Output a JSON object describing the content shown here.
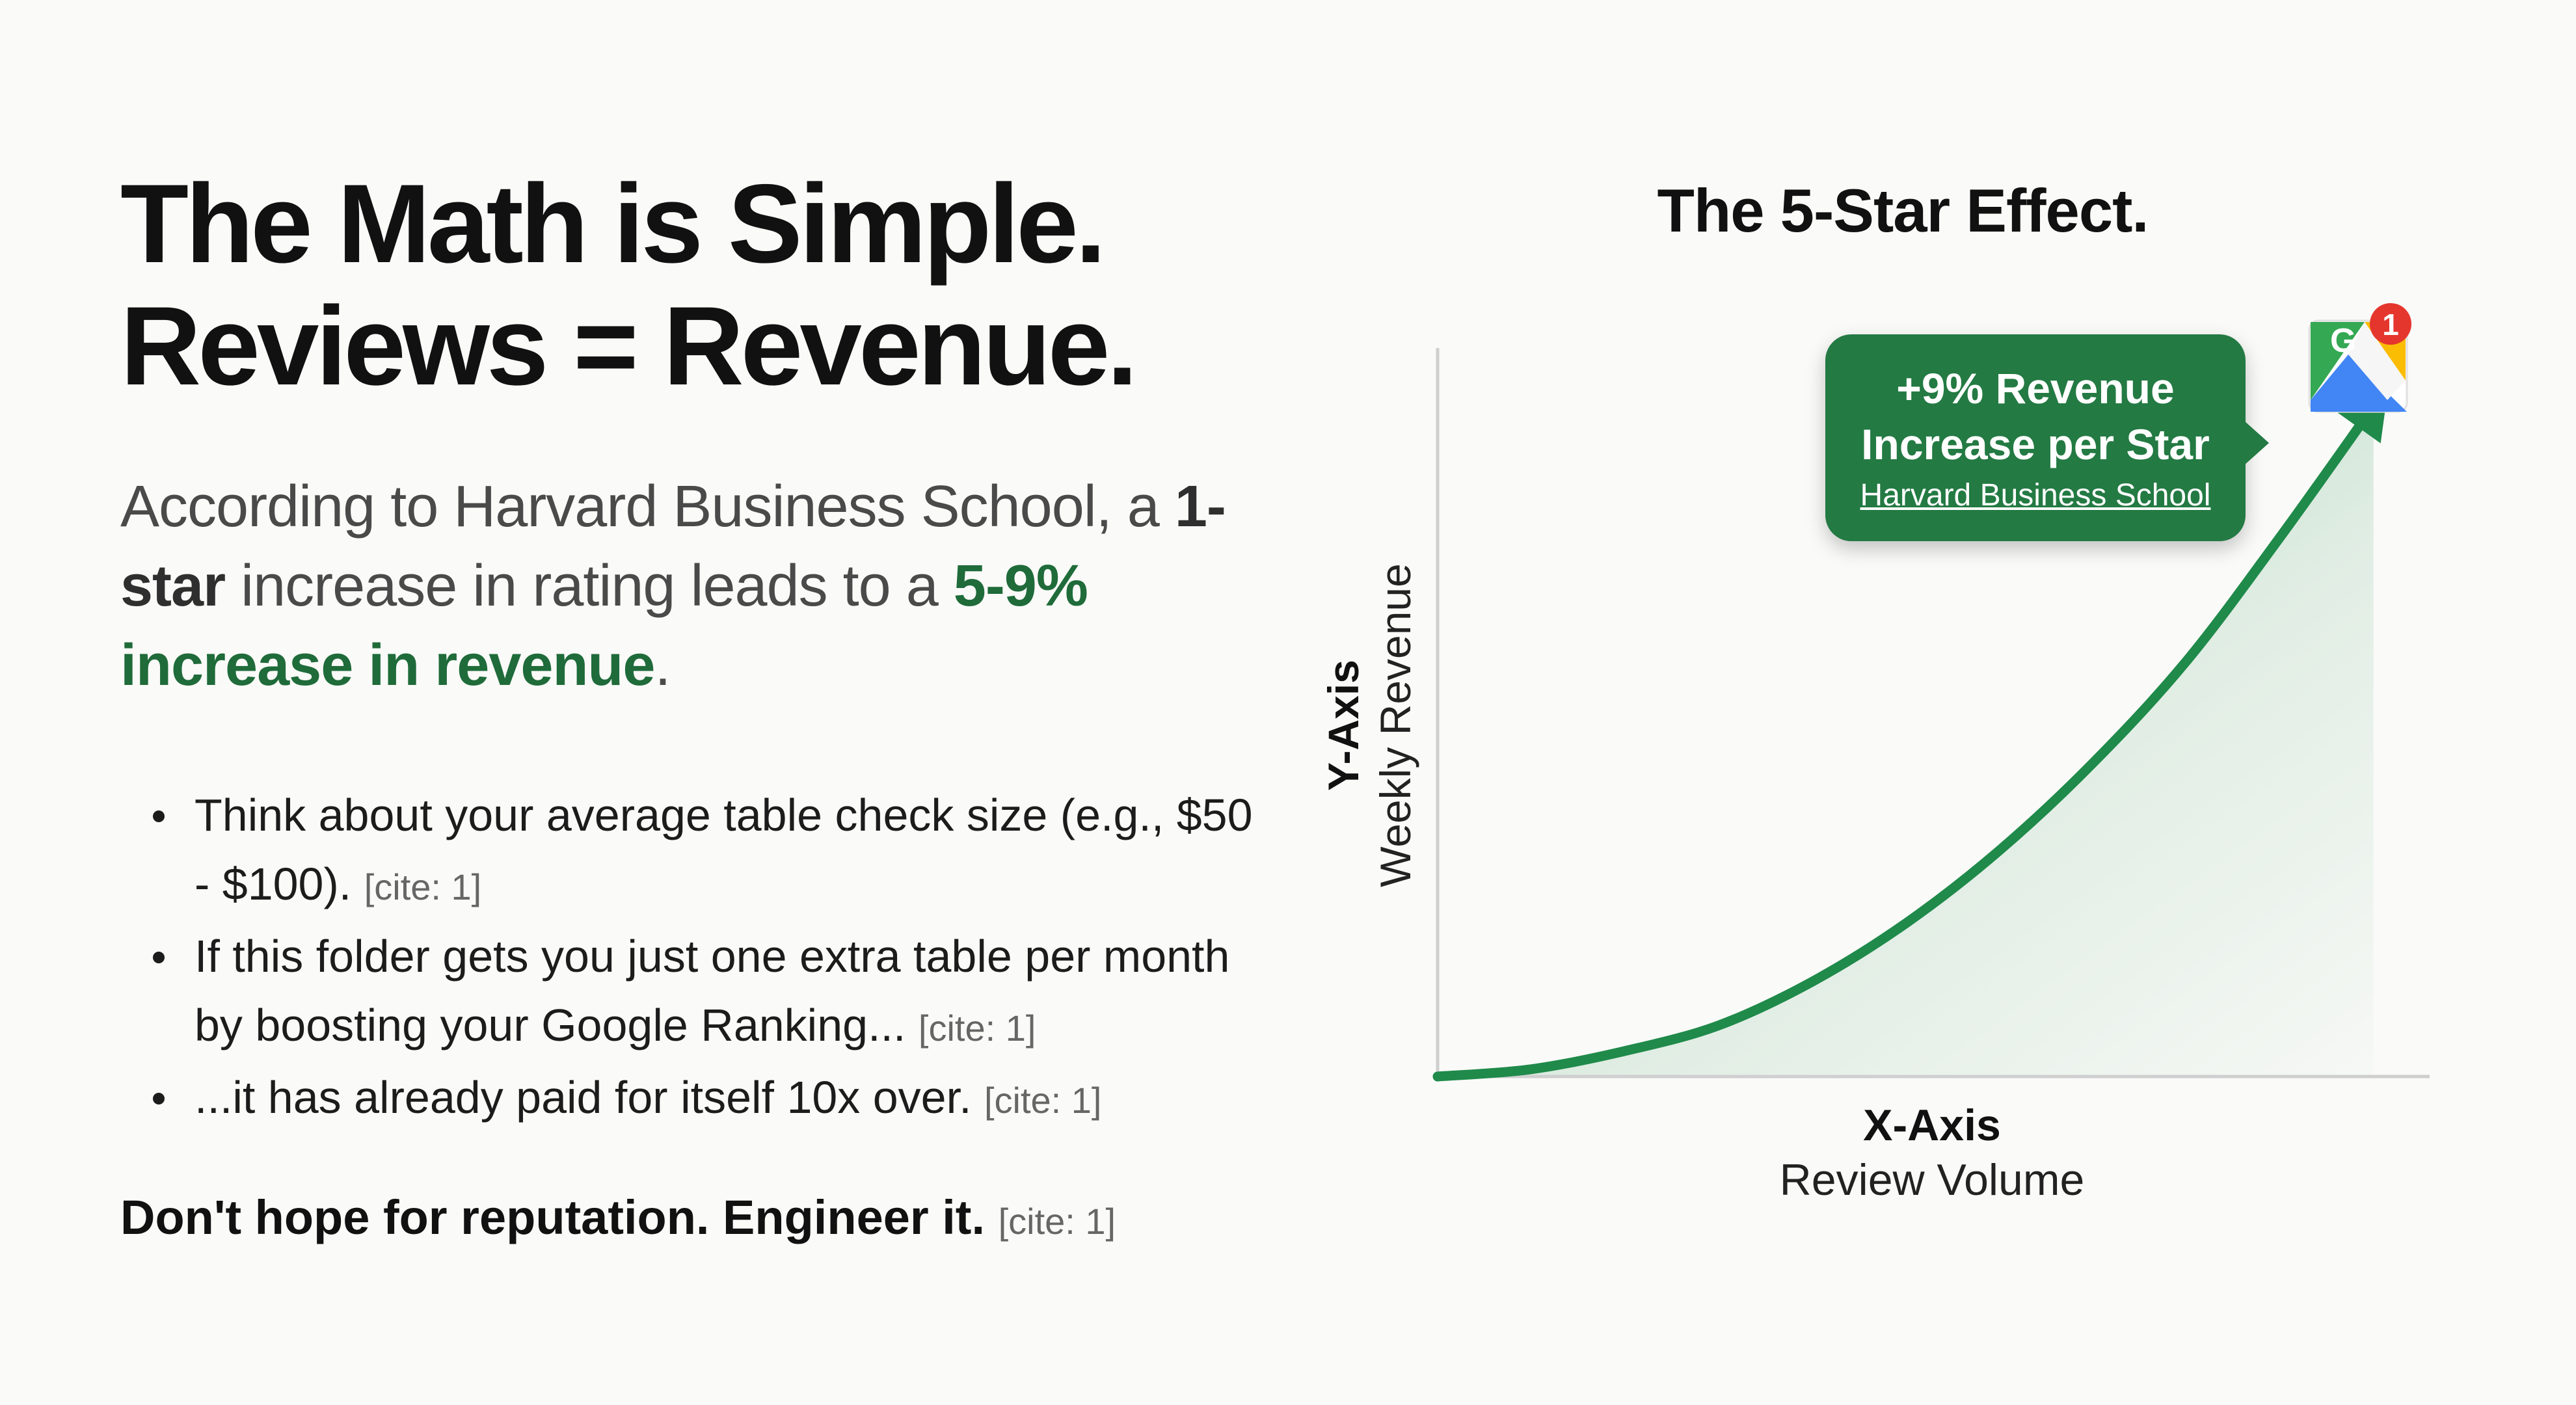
{
  "headline": {
    "line1": "The Math is Simple.",
    "line2": "Reviews = Revenue."
  },
  "intro": {
    "part1": "According to Harvard Business School, a ",
    "bold_star": "1-star",
    "part2": " increase in rating leads to a ",
    "green_highlight": "5-9% increase in revenue",
    "end": "."
  },
  "bullets": [
    {
      "text": "Think about your average table check size (e.g., $50 - $100).",
      "cite": "[cite: 1]"
    },
    {
      "text": "If this folder gets you just one extra table per month by boosting your Google Ranking...",
      "cite": "[cite: 1]"
    },
    {
      "text": "...it has already paid for itself 10x over.",
      "cite": "[cite: 1]"
    }
  ],
  "closing": {
    "text": "Don't hope for reputation. Engineer it.",
    "cite": "[cite: 1]"
  },
  "chart_data": {
    "type": "line",
    "title": "The 5-Star Effect.",
    "xlabel_title": "X-Axis",
    "xlabel": "Review Volume",
    "ylabel_title": "Y-Axis",
    "ylabel": "Weekly Revenue",
    "grid": false,
    "x": [
      0,
      0.1,
      0.2,
      0.3,
      0.4,
      0.5,
      0.6,
      0.7,
      0.8,
      0.9,
      1.0
    ],
    "y": [
      0,
      0.01,
      0.035,
      0.07,
      0.13,
      0.21,
      0.31,
      0.43,
      0.57,
      0.74,
      0.92
    ],
    "xlim": [
      0,
      1.06
    ],
    "ylim": [
      0,
      1
    ],
    "series_color": "#1f8a4a",
    "fill_gradient": true,
    "annotation": {
      "line1": "+9% Revenue",
      "line2": "Increase per Star",
      "source": "Harvard Business School",
      "color": "#237a43"
    },
    "badge": {
      "icon": "google-maps-pin-icon",
      "letter": "G",
      "count": "1",
      "badge_color": "#e5362e"
    }
  }
}
